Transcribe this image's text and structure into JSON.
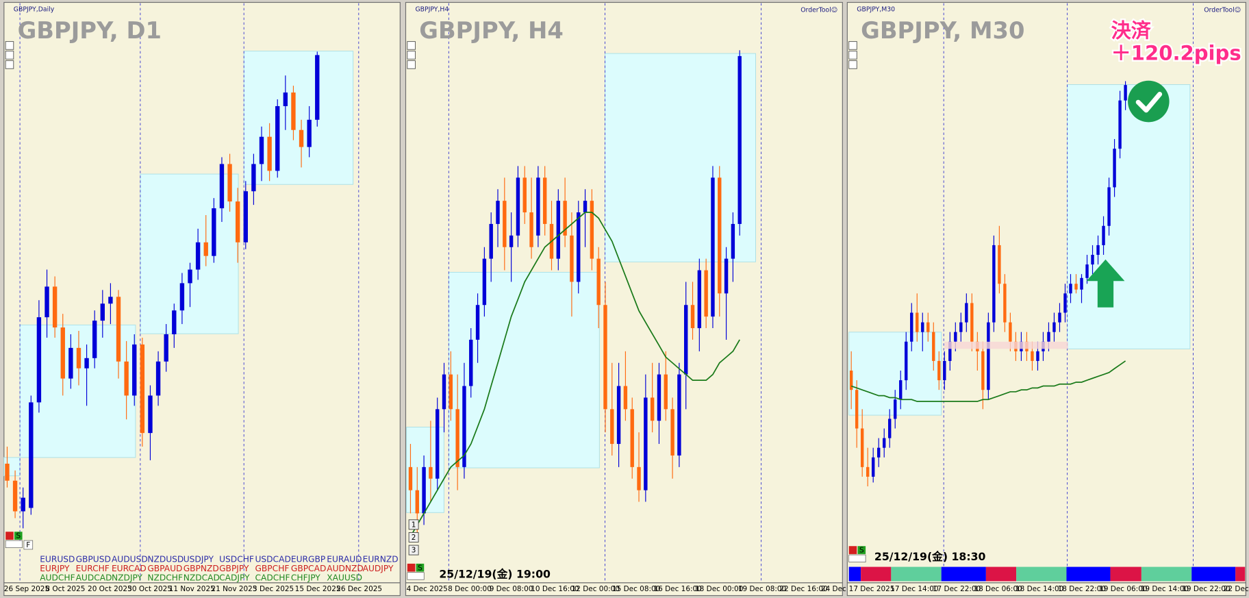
{
  "panels": [
    {
      "tab": "GBPJPY,Daily",
      "title": "GBPJPY, D1",
      "dates": [
        "26 Sep 2025",
        "8 Oct 2025",
        "20 Oct 2025",
        "30 Oct 2025",
        "11 Nov 2025",
        "21 Nov 2025",
        "3 Dec 2025",
        "15 Dec 2025",
        "26 Dec 2025"
      ],
      "ylim": [
        196,
        213
      ],
      "candles": [
        [
          199.5,
          200.0,
          198.8,
          199.0
        ],
        [
          199.0,
          199.3,
          197.9,
          198.1
        ],
        [
          198.1,
          198.8,
          197.6,
          198.5
        ],
        [
          198.2,
          201.5,
          198.0,
          201.3
        ],
        [
          201.3,
          204.3,
          201.0,
          203.8
        ],
        [
          203.8,
          205.2,
          203.2,
          204.7
        ],
        [
          204.7,
          205.0,
          203.2,
          203.5
        ],
        [
          203.5,
          203.9,
          201.5,
          202.0
        ],
        [
          202.0,
          203.3,
          201.7,
          202.9
        ],
        [
          202.9,
          203.4,
          201.8,
          202.3
        ],
        [
          202.3,
          203.0,
          201.2,
          202.6
        ],
        [
          202.6,
          204.0,
          202.3,
          203.7
        ],
        [
          203.7,
          204.6,
          203.2,
          204.2
        ],
        [
          204.2,
          204.8,
          203.6,
          204.4
        ],
        [
          204.4,
          204.6,
          202.0,
          202.5
        ],
        [
          202.5,
          203.1,
          200.8,
          201.5
        ],
        [
          201.5,
          203.3,
          201.2,
          203.0
        ],
        [
          203.0,
          203.2,
          200.0,
          200.4
        ],
        [
          200.4,
          201.8,
          199.6,
          201.5
        ],
        [
          201.5,
          202.8,
          201.2,
          202.5
        ],
        [
          202.5,
          203.6,
          202.2,
          203.3
        ],
        [
          203.3,
          204.2,
          202.9,
          204.0
        ],
        [
          204.0,
          205.1,
          203.6,
          204.8
        ],
        [
          204.8,
          205.4,
          204.1,
          205.2
        ],
        [
          205.2,
          206.4,
          204.9,
          206.0
        ],
        [
          206.0,
          206.8,
          205.3,
          205.6
        ],
        [
          205.6,
          207.3,
          205.4,
          207.0
        ],
        [
          207.0,
          208.5,
          206.6,
          208.3
        ],
        [
          208.3,
          208.6,
          206.9,
          207.2
        ],
        [
          207.2,
          207.6,
          205.4,
          206.0
        ],
        [
          206.0,
          207.8,
          205.8,
          207.5
        ],
        [
          207.5,
          208.6,
          207.1,
          208.3
        ],
        [
          208.3,
          209.4,
          207.8,
          209.1
        ],
        [
          209.1,
          209.5,
          207.8,
          208.1
        ],
        [
          208.1,
          210.2,
          207.9,
          210.0
        ],
        [
          210.0,
          210.9,
          209.3,
          210.4
        ],
        [
          210.4,
          210.6,
          209.0,
          209.3
        ],
        [
          209.3,
          209.6,
          208.2,
          208.8
        ],
        [
          208.8,
          210.0,
          208.5,
          209.6
        ],
        [
          209.6,
          211.6,
          209.4,
          211.5
        ]
      ]
    },
    {
      "tab": "GBPJPY,H4",
      "title": "GBPJPY, H4",
      "order_tool": "OrderTool☺",
      "dates": [
        "4 Dec 2025",
        "8 Dec 00:00",
        "9 Dec 08:00",
        "10 Dec 16:00",
        "12 Dec 00:00",
        "15 Dec 08:00",
        "16 Dec 16:00",
        "18 Dec 00:00",
        "19 Dec 08:00",
        "22 Dec 16:00",
        "24 Dec"
      ],
      "ylim": [
        207,
        212
      ],
      "candles": [
        [
          208.0,
          208.2,
          207.6,
          207.8
        ],
        [
          207.8,
          208.0,
          207.4,
          207.6
        ],
        [
          207.6,
          208.1,
          207.5,
          208.0
        ],
        [
          208.0,
          208.4,
          207.7,
          207.9
        ],
        [
          207.9,
          208.6,
          207.8,
          208.5
        ],
        [
          208.5,
          208.9,
          208.3,
          208.8
        ],
        [
          208.8,
          209.0,
          208.4,
          208.5
        ],
        [
          208.5,
          208.8,
          207.8,
          208.0
        ],
        [
          208.0,
          208.9,
          207.9,
          208.7
        ],
        [
          208.7,
          209.2,
          208.6,
          209.1
        ],
        [
          209.1,
          209.5,
          208.9,
          209.4
        ],
        [
          209.4,
          209.9,
          209.3,
          209.8
        ],
        [
          209.8,
          210.2,
          209.6,
          210.1
        ],
        [
          210.1,
          210.4,
          209.9,
          210.3
        ],
        [
          210.3,
          210.5,
          209.7,
          209.9
        ],
        [
          209.9,
          210.2,
          209.6,
          210.0
        ],
        [
          210.0,
          210.6,
          209.9,
          210.5
        ],
        [
          210.5,
          210.6,
          210.1,
          210.2
        ],
        [
          210.2,
          210.5,
          209.8,
          209.9
        ],
        [
          210.0,
          210.6,
          209.9,
          210.5
        ],
        [
          210.5,
          210.6,
          210.0,
          210.1
        ],
        [
          210.1,
          210.3,
          209.7,
          209.8
        ],
        [
          209.8,
          210.4,
          209.7,
          210.3
        ],
        [
          210.3,
          210.5,
          209.9,
          210.0
        ],
        [
          210.0,
          210.2,
          209.3,
          209.6
        ],
        [
          209.6,
          210.3,
          209.5,
          210.2
        ],
        [
          210.2,
          210.4,
          209.9,
          210.3
        ],
        [
          210.3,
          210.4,
          209.7,
          209.8
        ],
        [
          209.8,
          209.9,
          209.2,
          209.4
        ],
        [
          209.4,
          209.6,
          208.3,
          208.5
        ],
        [
          208.5,
          208.9,
          208.1,
          208.2
        ],
        [
          208.2,
          208.9,
          208.0,
          208.7
        ],
        [
          208.7,
          209.0,
          208.4,
          208.5
        ],
        [
          208.5,
          208.6,
          207.9,
          208.0
        ],
        [
          208.0,
          208.3,
          207.7,
          207.8
        ],
        [
          207.8,
          208.8,
          207.7,
          208.6
        ],
        [
          208.6,
          208.9,
          208.3,
          208.4
        ],
        [
          208.4,
          208.9,
          208.2,
          208.8
        ],
        [
          208.8,
          209.0,
          208.4,
          208.5
        ],
        [
          208.5,
          208.6,
          207.9,
          208.1
        ],
        [
          208.1,
          208.9,
          208.0,
          208.8
        ],
        [
          208.8,
          209.6,
          208.5,
          209.4
        ],
        [
          209.4,
          209.6,
          209.1,
          209.2
        ],
        [
          209.2,
          209.8,
          209.0,
          209.7
        ],
        [
          209.7,
          209.8,
          209.2,
          209.3
        ],
        [
          209.3,
          210.6,
          209.2,
          210.5
        ],
        [
          210.5,
          210.6,
          209.3,
          209.5
        ],
        [
          209.5,
          209.9,
          209.1,
          209.8
        ],
        [
          209.8,
          210.2,
          209.6,
          210.1
        ],
        [
          210.1,
          211.6,
          210.0,
          211.55
        ]
      ],
      "ma": [
        207.4,
        207.5,
        207.6,
        207.7,
        207.8,
        207.9,
        208.0,
        208.05,
        208.1,
        208.2,
        208.35,
        208.5,
        208.7,
        208.9,
        209.1,
        209.3,
        209.45,
        209.6,
        209.7,
        209.8,
        209.9,
        209.95,
        210.0,
        210.05,
        210.1,
        210.15,
        210.2,
        210.2,
        210.15,
        210.05,
        209.95,
        209.8,
        209.65,
        209.5,
        209.35,
        209.25,
        209.15,
        209.05,
        208.95,
        208.9,
        208.85,
        208.8,
        208.75,
        208.75,
        208.75,
        208.8,
        208.9,
        208.95,
        209.0,
        209.1
      ],
      "timestamp": "25/12/19(金) 19:00",
      "buttons": [
        "1",
        "2",
        "3"
      ]
    },
    {
      "tab": "GBPJPY,M30",
      "title": "GBPJPY, M30",
      "order_tool": "OrderTool☺",
      "dates": [
        "17 Dec 2025",
        "17 Dec 14:00",
        "17 Dec 22:00",
        "18 Dec 06:00",
        "18 Dec 14:00",
        "18 Dec 22:00",
        "19 Dec 06:00",
        "19 Dec 14:00",
        "19 Dec 22:00",
        "22 Dec 0"
      ],
      "ylim": [
        208.2,
        211.2
      ],
      "candles": [
        [
          209.3,
          209.4,
          209.1,
          209.2
        ],
        [
          209.2,
          209.25,
          208.9,
          209.0
        ],
        [
          209.0,
          209.1,
          208.75,
          208.8
        ],
        [
          208.8,
          208.9,
          208.7,
          208.75
        ],
        [
          208.75,
          208.9,
          208.72,
          208.85
        ],
        [
          208.85,
          208.95,
          208.8,
          208.9
        ],
        [
          208.9,
          209.0,
          208.85,
          208.95
        ],
        [
          208.95,
          209.1,
          208.9,
          209.05
        ],
        [
          209.05,
          209.2,
          209.0,
          209.15
        ],
        [
          209.15,
          209.3,
          209.1,
          209.25
        ],
        [
          209.25,
          209.5,
          209.2,
          209.45
        ],
        [
          209.45,
          209.65,
          209.4,
          209.6
        ],
        [
          209.6,
          209.7,
          209.45,
          209.5
        ],
        [
          209.5,
          209.6,
          209.4,
          209.55
        ],
        [
          209.55,
          209.6,
          209.45,
          209.5
        ],
        [
          209.5,
          209.55,
          209.3,
          209.35
        ],
        [
          209.35,
          209.4,
          209.2,
          209.25
        ],
        [
          209.25,
          209.4,
          209.2,
          209.35
        ],
        [
          209.35,
          209.5,
          209.3,
          209.45
        ],
        [
          209.45,
          209.55,
          209.4,
          209.5
        ],
        [
          209.5,
          209.6,
          209.45,
          209.55
        ],
        [
          209.55,
          209.7,
          209.5,
          209.65
        ],
        [
          209.65,
          209.7,
          209.4,
          209.45
        ],
        [
          209.45,
          209.5,
          209.3,
          209.4
        ],
        [
          209.4,
          209.45,
          209.1,
          209.2
        ],
        [
          209.2,
          209.6,
          209.15,
          209.55
        ],
        [
          209.55,
          210.0,
          209.5,
          209.95
        ],
        [
          209.95,
          210.05,
          209.7,
          209.75
        ],
        [
          209.75,
          209.8,
          209.5,
          209.55
        ],
        [
          209.55,
          209.6,
          209.4,
          209.45
        ],
        [
          209.45,
          209.5,
          209.35,
          209.4
        ],
        [
          209.4,
          209.5,
          209.35,
          209.45
        ],
        [
          209.45,
          209.5,
          209.35,
          209.4
        ],
        [
          209.4,
          209.45,
          209.3,
          209.35
        ],
        [
          209.35,
          209.45,
          209.3,
          209.4
        ],
        [
          209.4,
          209.5,
          209.35,
          209.45
        ],
        [
          209.45,
          209.55,
          209.4,
          209.5
        ],
        [
          209.5,
          209.6,
          209.45,
          209.55
        ],
        [
          209.55,
          209.65,
          209.5,
          209.6
        ],
        [
          209.6,
          209.75,
          209.55,
          209.7
        ],
        [
          209.7,
          209.8,
          209.65,
          209.75
        ],
        [
          209.75,
          209.8,
          209.7,
          209.72
        ],
        [
          209.72,
          209.8,
          209.65,
          209.78
        ],
        [
          209.78,
          209.9,
          209.75,
          209.85
        ],
        [
          209.85,
          209.95,
          209.8,
          209.9
        ],
        [
          209.9,
          210.0,
          209.85,
          209.95
        ],
        [
          209.95,
          210.1,
          209.9,
          210.05
        ],
        [
          210.05,
          210.3,
          210.0,
          210.25
        ],
        [
          210.25,
          210.5,
          210.2,
          210.45
        ],
        [
          210.45,
          210.75,
          210.4,
          210.7
        ],
        [
          210.7,
          210.8,
          210.65,
          210.78
        ]
      ],
      "ma": [
        209.22,
        209.21,
        209.2,
        209.19,
        209.18,
        209.17,
        209.17,
        209.16,
        209.16,
        209.15,
        209.15,
        209.15,
        209.14,
        209.14,
        209.14,
        209.14,
        209.14,
        209.14,
        209.14,
        209.14,
        209.14,
        209.14,
        209.14,
        209.14,
        209.15,
        209.15,
        209.16,
        209.17,
        209.18,
        209.19,
        209.19,
        209.2,
        209.2,
        209.21,
        209.21,
        209.22,
        209.22,
        209.22,
        209.23,
        209.23,
        209.23,
        209.24,
        209.24,
        209.25,
        209.26,
        209.27,
        209.28,
        209.29,
        209.31,
        209.33,
        209.35
      ],
      "timestamp": "25/12/19(金) 18:30",
      "annotation": [
        "決済",
        "＋120.2pips"
      ]
    }
  ],
  "symbols": [
    [
      "EURUSD",
      "GBPUSD",
      "AUDUSD",
      "NZDUSD",
      "USDJPY",
      "USDCHF",
      "USDCAD",
      "EURGBP",
      "EURAUD",
      "EURNZD"
    ],
    [
      "EURJPY",
      "EURCHF",
      "EURCAD",
      "GBPAUD",
      "GBPNZD",
      "GBPJPY",
      "GBPCHF",
      "GBPCAD",
      "AUDNZD",
      "AUDJPY"
    ],
    [
      "AUDCHF",
      "AUDCAD",
      "NZDJPY",
      "NZDCHF",
      "NZDCAD",
      "CADJPY",
      "CADCHF",
      "CHFJPY",
      "XAUUSD"
    ]
  ],
  "buttons": [
    "S",
    "F"
  ]
}
